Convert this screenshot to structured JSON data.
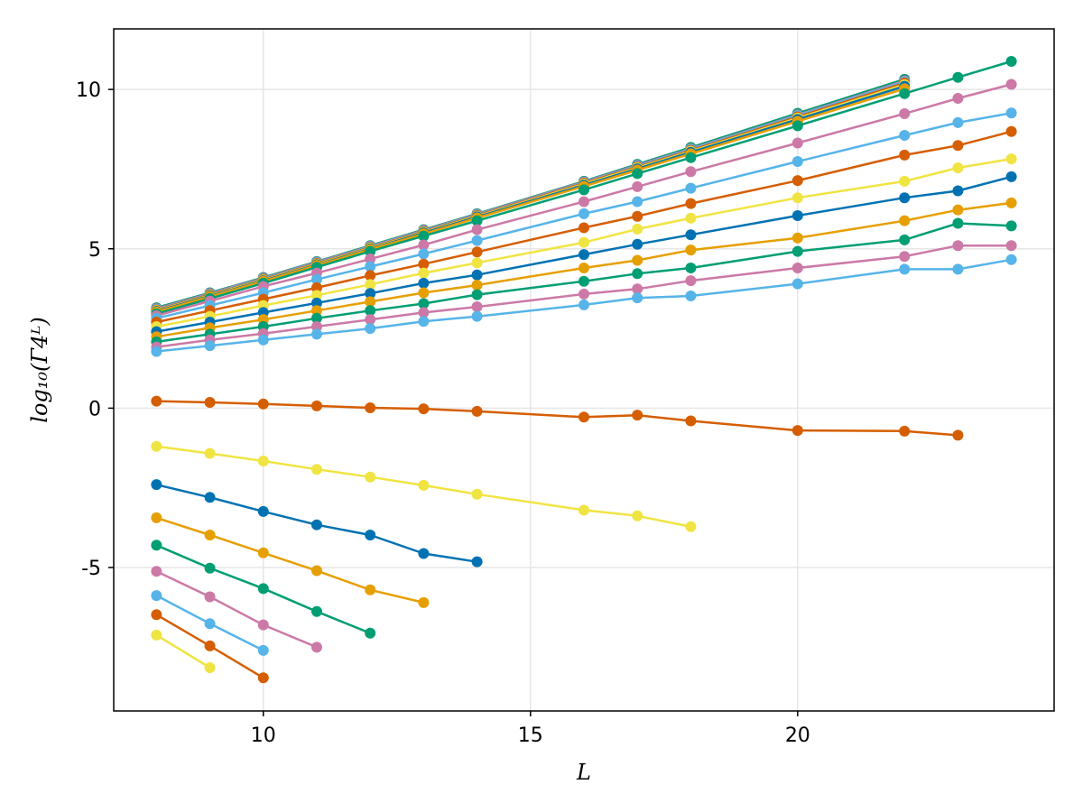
{
  "chart_data": {
    "type": "line",
    "xlabel": "L",
    "ylabel": "log₁₀(Γ4ᴸ)",
    "xlim": [
      7.2,
      24.8
    ],
    "ylim": [
      -9.5,
      11.9
    ],
    "xticks": [
      10,
      15,
      20
    ],
    "yticks": [
      -5,
      0,
      5,
      10
    ],
    "grid": true,
    "markers": true,
    "series": [
      {
        "color": "#009E73",
        "points": [
          [
            8,
            3.15
          ],
          [
            9,
            3.62
          ],
          [
            10,
            4.1
          ],
          [
            11,
            4.6
          ],
          [
            12,
            5.1
          ],
          [
            13,
            5.6
          ],
          [
            14,
            6.1
          ],
          [
            16,
            7.12
          ],
          [
            17,
            7.65
          ],
          [
            18,
            8.18
          ],
          [
            20,
            9.25
          ],
          [
            22,
            10.32
          ]
        ]
      },
      {
        "color": "#CC79A7",
        "points": [
          [
            8,
            3.12
          ],
          [
            9,
            3.6
          ],
          [
            10,
            4.08
          ],
          [
            11,
            4.58
          ],
          [
            12,
            5.08
          ],
          [
            13,
            5.58
          ],
          [
            14,
            6.08
          ],
          [
            16,
            7.1
          ],
          [
            17,
            7.62
          ],
          [
            18,
            8.14
          ],
          [
            20,
            9.2
          ],
          [
            22,
            10.27
          ]
        ]
      },
      {
        "color": "#56B4E9",
        "points": [
          [
            8,
            3.1
          ],
          [
            9,
            3.58
          ],
          [
            10,
            4.06
          ],
          [
            11,
            4.56
          ],
          [
            12,
            5.06
          ],
          [
            13,
            5.56
          ],
          [
            14,
            6.06
          ],
          [
            16,
            7.08
          ],
          [
            17,
            7.6
          ],
          [
            18,
            8.12
          ],
          [
            20,
            9.18
          ],
          [
            22,
            10.24
          ]
        ]
      },
      {
        "color": "#D55E00",
        "points": [
          [
            8,
            3.08
          ],
          [
            9,
            3.56
          ],
          [
            10,
            4.04
          ],
          [
            11,
            4.54
          ],
          [
            12,
            5.04
          ],
          [
            13,
            5.54
          ],
          [
            14,
            6.04
          ],
          [
            16,
            7.06
          ],
          [
            17,
            7.57
          ],
          [
            18,
            8.09
          ],
          [
            20,
            9.14
          ],
          [
            22,
            10.2
          ]
        ]
      },
      {
        "color": "#F0E442",
        "points": [
          [
            8,
            3.06
          ],
          [
            9,
            3.54
          ],
          [
            10,
            4.02
          ],
          [
            11,
            4.52
          ],
          [
            12,
            5.02
          ],
          [
            13,
            5.52
          ],
          [
            14,
            6.02
          ],
          [
            16,
            7.03
          ],
          [
            17,
            7.54
          ],
          [
            18,
            8.06
          ],
          [
            20,
            9.1
          ],
          [
            22,
            10.15
          ]
        ]
      },
      {
        "color": "#0072B2",
        "points": [
          [
            8,
            3.04
          ],
          [
            9,
            3.52
          ],
          [
            10,
            4.0
          ],
          [
            11,
            4.5
          ],
          [
            12,
            5.0
          ],
          [
            13,
            5.5
          ],
          [
            14,
            6.0
          ],
          [
            16,
            7.0
          ],
          [
            17,
            7.51
          ],
          [
            18,
            8.03
          ],
          [
            20,
            9.06
          ],
          [
            22,
            10.1
          ]
        ]
      },
      {
        "color": "#E69F00",
        "points": [
          [
            8,
            3.02
          ],
          [
            9,
            3.5
          ],
          [
            10,
            3.98
          ],
          [
            11,
            4.48
          ],
          [
            12,
            4.98
          ],
          [
            13,
            5.47
          ],
          [
            14,
            5.97
          ],
          [
            16,
            6.96
          ],
          [
            17,
            7.47
          ],
          [
            18,
            7.98
          ],
          [
            20,
            9.0
          ],
          [
            22,
            10.02
          ]
        ]
      },
      {
        "color": "#009E73",
        "points": [
          [
            8,
            2.96
          ],
          [
            9,
            3.44
          ],
          [
            10,
            3.92
          ],
          [
            11,
            4.42
          ],
          [
            12,
            4.92
          ],
          [
            13,
            5.4
          ],
          [
            14,
            5.88
          ],
          [
            16,
            6.85
          ],
          [
            17,
            7.36
          ],
          [
            18,
            7.86
          ],
          [
            20,
            8.86
          ],
          [
            22,
            9.87
          ],
          [
            23,
            10.38
          ],
          [
            24,
            10.88
          ]
        ]
      },
      {
        "color": "#CC79A7",
        "points": [
          [
            8,
            2.9
          ],
          [
            9,
            3.36
          ],
          [
            10,
            3.82
          ],
          [
            11,
            4.24
          ],
          [
            12,
            4.68
          ],
          [
            13,
            5.12
          ],
          [
            14,
            5.6
          ],
          [
            16,
            6.48
          ],
          [
            17,
            6.95
          ],
          [
            18,
            7.42
          ],
          [
            20,
            8.32
          ],
          [
            22,
            9.24
          ],
          [
            23,
            9.72
          ],
          [
            24,
            10.16
          ]
        ]
      },
      {
        "color": "#56B4E9",
        "points": [
          [
            8,
            2.82
          ],
          [
            9,
            3.22
          ],
          [
            10,
            3.62
          ],
          [
            11,
            4.04
          ],
          [
            12,
            4.44
          ],
          [
            13,
            4.84
          ],
          [
            14,
            5.26
          ],
          [
            16,
            6.1
          ],
          [
            17,
            6.48
          ],
          [
            18,
            6.9
          ],
          [
            20,
            7.74
          ],
          [
            22,
            8.56
          ],
          [
            23,
            8.96
          ],
          [
            24,
            9.26
          ]
        ]
      },
      {
        "color": "#D55E00",
        "points": [
          [
            8,
            2.7
          ],
          [
            9,
            3.06
          ],
          [
            10,
            3.42
          ],
          [
            11,
            3.78
          ],
          [
            12,
            4.16
          ],
          [
            13,
            4.52
          ],
          [
            14,
            4.9
          ],
          [
            16,
            5.66
          ],
          [
            17,
            6.02
          ],
          [
            18,
            6.42
          ],
          [
            20,
            7.14
          ],
          [
            22,
            7.94
          ],
          [
            23,
            8.24
          ],
          [
            24,
            8.68
          ]
        ]
      },
      {
        "color": "#F0E442",
        "points": [
          [
            8,
            2.56
          ],
          [
            9,
            2.88
          ],
          [
            10,
            3.22
          ],
          [
            11,
            3.54
          ],
          [
            12,
            3.88
          ],
          [
            13,
            4.24
          ],
          [
            14,
            4.56
          ],
          [
            16,
            5.2
          ],
          [
            17,
            5.62
          ],
          [
            18,
            5.96
          ],
          [
            20,
            6.6
          ],
          [
            22,
            7.12
          ],
          [
            23,
            7.54
          ],
          [
            24,
            7.82
          ]
        ]
      },
      {
        "color": "#0072B2",
        "points": [
          [
            8,
            2.4
          ],
          [
            9,
            2.7
          ],
          [
            10,
            3.0
          ],
          [
            11,
            3.3
          ],
          [
            12,
            3.6
          ],
          [
            13,
            3.92
          ],
          [
            14,
            4.18
          ],
          [
            16,
            4.82
          ],
          [
            17,
            5.14
          ],
          [
            18,
            5.44
          ],
          [
            20,
            6.04
          ],
          [
            22,
            6.6
          ],
          [
            23,
            6.82
          ],
          [
            24,
            7.26
          ]
        ]
      },
      {
        "color": "#E69F00",
        "points": [
          [
            8,
            2.24
          ],
          [
            9,
            2.52
          ],
          [
            10,
            2.78
          ],
          [
            11,
            3.06
          ],
          [
            12,
            3.34
          ],
          [
            13,
            3.62
          ],
          [
            14,
            3.86
          ],
          [
            16,
            4.4
          ],
          [
            17,
            4.64
          ],
          [
            18,
            4.96
          ],
          [
            20,
            5.34
          ],
          [
            22,
            5.88
          ],
          [
            23,
            6.22
          ],
          [
            24,
            6.44
          ]
        ]
      },
      {
        "color": "#009E73",
        "points": [
          [
            8,
            2.08
          ],
          [
            9,
            2.32
          ],
          [
            10,
            2.56
          ],
          [
            11,
            2.82
          ],
          [
            12,
            3.06
          ],
          [
            13,
            3.28
          ],
          [
            14,
            3.56
          ],
          [
            16,
            3.98
          ],
          [
            17,
            4.22
          ],
          [
            18,
            4.4
          ],
          [
            20,
            4.92
          ],
          [
            22,
            5.28
          ],
          [
            23,
            5.8
          ],
          [
            24,
            5.72
          ]
        ]
      },
      {
        "color": "#CC79A7",
        "points": [
          [
            8,
            1.92
          ],
          [
            9,
            2.14
          ],
          [
            10,
            2.34
          ],
          [
            11,
            2.56
          ],
          [
            12,
            2.78
          ],
          [
            13,
            3.0
          ],
          [
            14,
            3.18
          ],
          [
            16,
            3.58
          ],
          [
            17,
            3.74
          ],
          [
            18,
            4.0
          ],
          [
            20,
            4.4
          ],
          [
            22,
            4.76
          ],
          [
            23,
            5.1
          ],
          [
            24,
            5.1
          ]
        ]
      },
      {
        "color": "#56B4E9",
        "points": [
          [
            8,
            1.78
          ],
          [
            9,
            1.96
          ],
          [
            10,
            2.14
          ],
          [
            11,
            2.32
          ],
          [
            12,
            2.5
          ],
          [
            13,
            2.72
          ],
          [
            14,
            2.88
          ],
          [
            16,
            3.24
          ],
          [
            17,
            3.46
          ],
          [
            18,
            3.52
          ],
          [
            20,
            3.9
          ],
          [
            22,
            4.36
          ],
          [
            23,
            4.36
          ],
          [
            24,
            4.66
          ]
        ]
      },
      {
        "color": "#D55E00",
        "points": [
          [
            8,
            0.22
          ],
          [
            9,
            0.18
          ],
          [
            10,
            0.13
          ],
          [
            11,
            0.07
          ],
          [
            12,
            0.01
          ],
          [
            13,
            -0.02
          ],
          [
            14,
            -0.1
          ],
          [
            16,
            -0.28
          ],
          [
            17,
            -0.22
          ],
          [
            18,
            -0.4
          ],
          [
            20,
            -0.7
          ],
          [
            22,
            -0.72
          ],
          [
            23,
            -0.85
          ]
        ]
      },
      {
        "color": "#F0E442",
        "points": [
          [
            8,
            -1.2
          ],
          [
            9,
            -1.42
          ],
          [
            10,
            -1.66
          ],
          [
            11,
            -1.92
          ],
          [
            12,
            -2.16
          ],
          [
            13,
            -2.42
          ],
          [
            14,
            -2.7
          ],
          [
            16,
            -3.2
          ],
          [
            17,
            -3.38
          ],
          [
            18,
            -3.72
          ]
        ]
      },
      {
        "color": "#0072B2",
        "points": [
          [
            8,
            -2.4
          ],
          [
            9,
            -2.8
          ],
          [
            10,
            -3.24
          ],
          [
            11,
            -3.66
          ],
          [
            12,
            -3.98
          ],
          [
            13,
            -4.56
          ],
          [
            14,
            -4.82
          ]
        ]
      },
      {
        "color": "#E69F00",
        "points": [
          [
            8,
            -3.44
          ],
          [
            9,
            -3.98
          ],
          [
            10,
            -4.54
          ],
          [
            11,
            -5.1
          ],
          [
            12,
            -5.7
          ],
          [
            13,
            -6.1
          ]
        ]
      },
      {
        "color": "#009E73",
        "points": [
          [
            8,
            -4.3
          ],
          [
            9,
            -5.02
          ],
          [
            10,
            -5.66
          ],
          [
            11,
            -6.38
          ],
          [
            12,
            -7.06
          ]
        ]
      },
      {
        "color": "#CC79A7",
        "points": [
          [
            8,
            -5.12
          ],
          [
            9,
            -5.92
          ],
          [
            10,
            -6.8
          ],
          [
            11,
            -7.5
          ]
        ]
      },
      {
        "color": "#56B4E9",
        "points": [
          [
            8,
            -5.88
          ],
          [
            9,
            -6.76
          ],
          [
            10,
            -7.6
          ]
        ]
      },
      {
        "color": "#D55E00",
        "points": [
          [
            8,
            -6.48
          ],
          [
            9,
            -7.46
          ],
          [
            10,
            -8.46
          ]
        ]
      },
      {
        "color": "#F0E442",
        "points": [
          [
            8,
            -7.12
          ],
          [
            9,
            -8.14
          ]
        ]
      }
    ]
  }
}
